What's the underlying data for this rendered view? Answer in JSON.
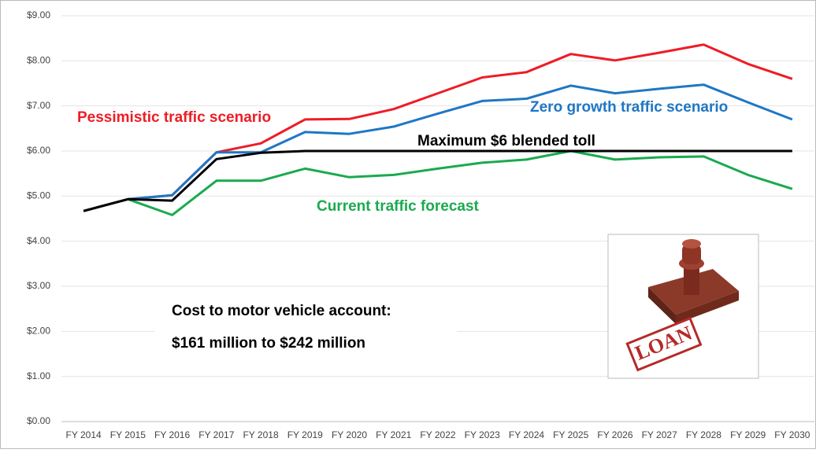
{
  "chart_data": {
    "type": "line",
    "categories": [
      "FY 2014",
      "FY 2015",
      "FY 2016",
      "FY 2017",
      "FY 2018",
      "FY 2019",
      "FY 2020",
      "FY 2021",
      "FY 2022",
      "FY 2023",
      "FY 2024",
      "FY 2025",
      "FY 2026",
      "FY 2027",
      "FY 2028",
      "FY 2029",
      "FY 2030"
    ],
    "series": [
      {
        "name": "Pessimistic  traffic scenario",
        "color": "#ee1c25",
        "values": [
          4.67,
          4.93,
          5.02,
          5.97,
          6.17,
          6.7,
          6.71,
          6.93,
          7.28,
          7.63,
          7.75,
          8.15,
          8.01,
          8.18,
          8.36,
          7.93,
          7.6
        ]
      },
      {
        "name": "Zero growth  traffic scenario",
        "color": "#1f77c4",
        "values": [
          4.67,
          4.93,
          5.02,
          5.97,
          5.97,
          6.42,
          6.38,
          6.54,
          6.83,
          7.11,
          7.16,
          7.45,
          7.28,
          7.38,
          7.47,
          7.08,
          6.7
        ]
      },
      {
        "name": "Current traffic forecast",
        "color": "#1aaa4f",
        "values": [
          null,
          4.93,
          4.58,
          5.34,
          5.34,
          5.61,
          5.42,
          5.47,
          5.61,
          5.74,
          5.81,
          6.0,
          5.81,
          5.86,
          5.88,
          5.47,
          5.16
        ]
      },
      {
        "name": "Maximum $6 blended toll",
        "color": "#000000",
        "values": [
          4.67,
          4.93,
          4.9,
          5.82,
          5.96,
          6.0,
          6.0,
          6.0,
          6.0,
          6.0,
          6.0,
          6.0,
          6.0,
          6.0,
          6.0,
          6.0,
          6.0
        ]
      }
    ],
    "ylim": [
      0,
      9
    ],
    "yticks": [
      {
        "value": 0,
        "label": "$0.00"
      },
      {
        "value": 1,
        "label": "$1.00"
      },
      {
        "value": 2,
        "label": "$2.00"
      },
      {
        "value": 3,
        "label": "$3.00"
      },
      {
        "value": 4,
        "label": "$4.00"
      },
      {
        "value": 5,
        "label": "$5.00"
      },
      {
        "value": 6,
        "label": "$6.00"
      },
      {
        "value": 7,
        "label": "$7.00"
      },
      {
        "value": 8,
        "label": "$8.00"
      },
      {
        "value": 9,
        "label": "$9.00"
      }
    ],
    "grid": true,
    "annotations": [
      "Cost to motor vehicle account:",
      "$161 million to $242 million"
    ],
    "stamp_text": "LOAN"
  }
}
